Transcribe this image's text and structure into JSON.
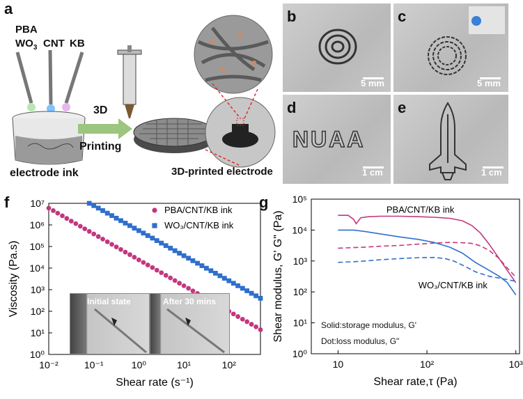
{
  "panel_a": {
    "label": "a",
    "material_1": "PBA",
    "material_2_prefix": "WO",
    "material_2_sub": "3",
    "material_3": "CNT",
    "material_4": "KB",
    "arrow_top": "3D",
    "arrow_bottom": "Printing",
    "ink_label": "electrode ink",
    "electrode_label": "3D-printed electrode"
  },
  "photos": [
    {
      "label": "b",
      "scale": "5 mm"
    },
    {
      "label": "c",
      "scale": "5 mm"
    },
    {
      "label": "d",
      "text": "NUAA",
      "scale": "1 cm"
    },
    {
      "label": "e",
      "scale": "1 cm"
    }
  ],
  "panel_f": {
    "label": "f",
    "inset_left": "Initial state",
    "inset_right": "After 30 mins"
  },
  "panel_g": {
    "label": "g",
    "annotation_1": "Solid:storage modulus, G'",
    "annotation_2": "Dot:loss modulus, G\""
  },
  "colors": {
    "pba": "#c2377f",
    "wo3": "#2f6fcc"
  },
  "chart_data": [
    {
      "type": "scatter",
      "xlabel": "Shear rate (s⁻¹)",
      "ylabel": "Viscosity (Pa.s)",
      "xscale": "log",
      "yscale": "log",
      "xlim": [
        0.01,
        500
      ],
      "ylim": [
        1,
        10000000
      ],
      "xticks": [
        "10⁻²",
        "10⁻¹",
        "10⁰",
        "10¹",
        "10²"
      ],
      "yticks": [
        "10⁰",
        "10¹",
        "10²",
        "10³",
        "10⁴",
        "10⁵",
        "10⁶",
        "10⁷"
      ],
      "legend": "top-right",
      "series": [
        {
          "name": "PBA/CNT/KB ink",
          "marker": "circle",
          "color": "#c2377f",
          "x": [
            0.01,
            0.0126,
            0.0158,
            0.02,
            0.0251,
            0.0316,
            0.0398,
            0.0501,
            0.0631,
            0.0794,
            0.1,
            0.126,
            0.158,
            0.2,
            0.251,
            0.316,
            0.398,
            0.501,
            0.631,
            0.794,
            1,
            1.26,
            1.58,
            2,
            2.51,
            3.16,
            3.98,
            5.01,
            6.31,
            7.94,
            10,
            12.6,
            15.8,
            20,
            25.1,
            31.6,
            39.8,
            50.1,
            63.1,
            79.4,
            100,
            126,
            158,
            200,
            251,
            316,
            398,
            500
          ],
          "y": [
            6000000,
            4600000,
            3500000,
            2650000,
            2000000,
            1500000,
            1150000,
            870000,
            660000,
            500000,
            380000,
            290000,
            220000,
            166000,
            126000,
            96000,
            73000,
            55000,
            42000,
            32000,
            24000,
            18300,
            13900,
            10600,
            8000,
            6100,
            4600,
            3500,
            2650,
            2000,
            1520,
            1160,
            880,
            670,
            510,
            390,
            295,
            225,
            171,
            130,
            99,
            75,
            57,
            43,
            33,
            25,
            19,
            14
          ]
        },
        {
          "name": "WO₃/CNT/KB ink",
          "marker": "square",
          "color": "#2f6fcc",
          "x": [
            0.0794,
            0.1,
            0.126,
            0.158,
            0.2,
            0.251,
            0.316,
            0.398,
            0.501,
            0.631,
            0.794,
            1,
            1.26,
            1.58,
            2,
            2.51,
            3.16,
            3.98,
            5.01,
            6.31,
            7.94,
            10,
            12.6,
            15.8,
            20,
            25.1,
            31.6,
            39.8,
            50.1,
            63.1,
            79.4,
            100,
            126,
            158,
            200,
            251,
            316,
            398,
            500
          ],
          "y": [
            10000000,
            7800000,
            6000000,
            4600000,
            3500000,
            2700000,
            2050000,
            1580000,
            1210000,
            930000,
            710000,
            545000,
            418000,
            320000,
            245000,
            188000,
            144000,
            110000,
            84000,
            64000,
            49000,
            37500,
            28700,
            22000,
            16800,
            12900,
            9850,
            7550,
            5780,
            4420,
            3380,
            2590,
            1980,
            1520,
            1160,
            890,
            680,
            520,
            400
          ]
        }
      ]
    },
    {
      "type": "line",
      "xlabel": "Shear rate,τ (Pa)",
      "ylabel": "Shear modulus, G' G\" (Pa)",
      "xscale": "log",
      "yscale": "log",
      "xlim": [
        5,
        1100
      ],
      "ylim": [
        1,
        100000
      ],
      "xticks": [
        "10",
        "10²",
        "10³"
      ],
      "yticks": [
        "10⁰",
        "10¹",
        "10²",
        "10³",
        "10⁴",
        "10⁵"
      ],
      "series": [
        {
          "name": "PBA/CNT/KB ink",
          "style": "solid",
          "color": "#c2377f",
          "x": [
            10,
            13,
            15,
            16,
            18,
            22,
            30,
            50,
            80,
            120,
            180,
            250,
            320,
            400,
            500,
            650,
            800,
            1000
          ],
          "y": [
            30000,
            30000,
            22000,
            16000,
            25000,
            27000,
            28000,
            28000,
            27000,
            26000,
            24000,
            20000,
            14000,
            8000,
            3500,
            1200,
            500,
            200
          ]
        },
        {
          "name": "PBA/CNT/KB ink G\"",
          "style": "dashed",
          "color": "#c2377f",
          "x": [
            10,
            15,
            20,
            30,
            50,
            80,
            120,
            180,
            250,
            320,
            400,
            500,
            650,
            800,
            1000
          ],
          "y": [
            2600,
            2700,
            2800,
            3000,
            3200,
            3500,
            3800,
            4000,
            3900,
            3700,
            3100,
            2200,
            1200,
            600,
            300
          ]
        },
        {
          "name": "WO₃/CNT/KB ink",
          "style": "solid",
          "color": "#2f6fcc",
          "x": [
            10,
            15,
            20,
            30,
            50,
            80,
            120,
            180,
            250,
            350,
            500,
            650,
            800,
            1000
          ],
          "y": [
            10000,
            10000,
            9000,
            7500,
            6000,
            5000,
            4000,
            2800,
            1800,
            900,
            500,
            320,
            200,
            80
          ]
        },
        {
          "name": "WO₃/CNT/KB ink G\"",
          "style": "dashed",
          "color": "#2f6fcc",
          "x": [
            10,
            15,
            20,
            30,
            50,
            80,
            120,
            160,
            200,
            260,
            350,
            500,
            650,
            800,
            1000
          ],
          "y": [
            900,
            950,
            1000,
            1100,
            1200,
            1280,
            1300,
            1200,
            1000,
            700,
            450,
            320,
            280,
            250,
            220
          ]
        }
      ]
    }
  ]
}
